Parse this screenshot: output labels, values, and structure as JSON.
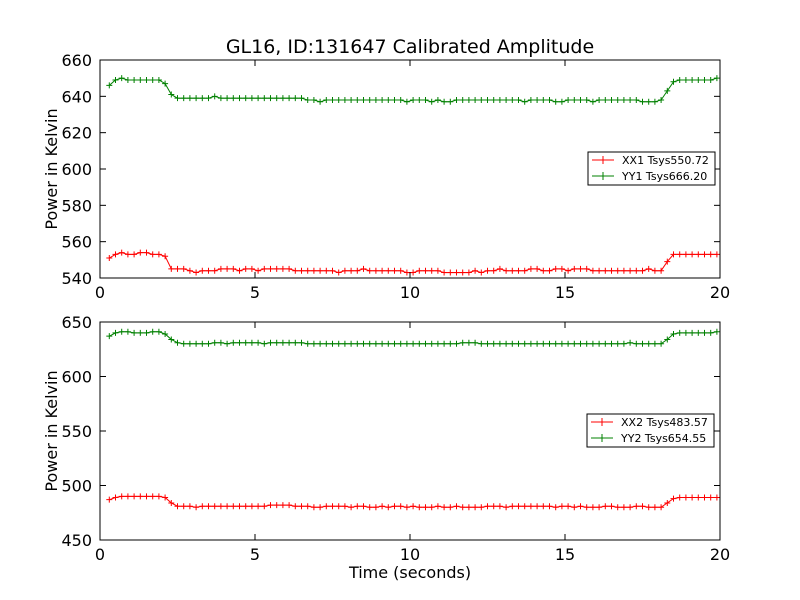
{
  "chart_data": [
    {
      "type": "line",
      "title": "GL16, ID:131647 Calibrated Amplitude",
      "xlabel": "",
      "ylabel": "Power in Kelvin",
      "xlim": [
        0,
        20
      ],
      "ylim": [
        540,
        660
      ],
      "xticks": [
        0,
        5,
        10,
        15,
        20
      ],
      "yticks": [
        540,
        560,
        580,
        600,
        620,
        640,
        660
      ],
      "grid": false,
      "legend_position": "center-right",
      "series": [
        {
          "name": "XX1 Tsys550.72",
          "color": "#ff0000",
          "x": [
            0.3,
            0.5,
            0.7,
            0.9,
            1.1,
            1.3,
            1.5,
            1.7,
            1.9,
            2.1,
            2.3,
            2.5,
            2.7,
            2.9,
            3.1,
            3.3,
            3.5,
            3.7,
            3.9,
            4.1,
            4.3,
            4.5,
            4.7,
            4.9,
            5.1,
            5.3,
            5.5,
            5.7,
            5.9,
            6.1,
            6.3,
            6.5,
            6.7,
            6.9,
            7.1,
            7.3,
            7.5,
            7.7,
            7.9,
            8.1,
            8.3,
            8.5,
            8.7,
            8.9,
            9.1,
            9.3,
            9.5,
            9.7,
            9.9,
            10.1,
            10.3,
            10.5,
            10.7,
            10.9,
            11.1,
            11.3,
            11.5,
            11.7,
            11.9,
            12.1,
            12.3,
            12.5,
            12.7,
            12.9,
            13.1,
            13.3,
            13.5,
            13.7,
            13.9,
            14.1,
            14.3,
            14.5,
            14.7,
            14.9,
            15.1,
            15.3,
            15.5,
            15.7,
            15.9,
            16.1,
            16.3,
            16.5,
            16.7,
            16.9,
            17.1,
            17.3,
            17.5,
            17.7,
            17.9,
            18.1,
            18.3,
            18.5,
            18.7,
            18.9,
            19.1,
            19.3,
            19.5,
            19.7,
            19.9
          ],
          "values": [
            551,
            553,
            554,
            553,
            553,
            554,
            554,
            553,
            553,
            552,
            545,
            545,
            545,
            544,
            543,
            544,
            544,
            544,
            545,
            545,
            545,
            544,
            545,
            545,
            544,
            545,
            545,
            545,
            545,
            545,
            544,
            544,
            544,
            544,
            544,
            544,
            544,
            543,
            544,
            544,
            544,
            545,
            544,
            544,
            544,
            544,
            544,
            544,
            543,
            543,
            544,
            544,
            544,
            544,
            543,
            543,
            543,
            543,
            543,
            544,
            543,
            544,
            544,
            545,
            544,
            544,
            544,
            544,
            545,
            545,
            544,
            544,
            545,
            545,
            544,
            545,
            545,
            545,
            544,
            544,
            544,
            544,
            544,
            544,
            544,
            544,
            544,
            545,
            544,
            544,
            549,
            553,
            553,
            553,
            553,
            553,
            553,
            553,
            553
          ],
          "approximate": true
        },
        {
          "name": "YY1 Tsys666.20",
          "color": "#008000",
          "x": [
            0.3,
            0.5,
            0.7,
            0.9,
            1.1,
            1.3,
            1.5,
            1.7,
            1.9,
            2.1,
            2.3,
            2.5,
            2.7,
            2.9,
            3.1,
            3.3,
            3.5,
            3.7,
            3.9,
            4.1,
            4.3,
            4.5,
            4.7,
            4.9,
            5.1,
            5.3,
            5.5,
            5.7,
            5.9,
            6.1,
            6.3,
            6.5,
            6.7,
            6.9,
            7.1,
            7.3,
            7.5,
            7.7,
            7.9,
            8.1,
            8.3,
            8.5,
            8.7,
            8.9,
            9.1,
            9.3,
            9.5,
            9.7,
            9.9,
            10.1,
            10.3,
            10.5,
            10.7,
            10.9,
            11.1,
            11.3,
            11.5,
            11.7,
            11.9,
            12.1,
            12.3,
            12.5,
            12.7,
            12.9,
            13.1,
            13.3,
            13.5,
            13.7,
            13.9,
            14.1,
            14.3,
            14.5,
            14.7,
            14.9,
            15.1,
            15.3,
            15.5,
            15.7,
            15.9,
            16.1,
            16.3,
            16.5,
            16.7,
            16.9,
            17.1,
            17.3,
            17.5,
            17.7,
            17.9,
            18.1,
            18.3,
            18.5,
            18.7,
            18.9,
            19.1,
            19.3,
            19.5,
            19.7,
            19.9
          ],
          "values": [
            646,
            649,
            650,
            649,
            649,
            649,
            649,
            649,
            649,
            647,
            641,
            639,
            639,
            639,
            639,
            639,
            639,
            640,
            639,
            639,
            639,
            639,
            639,
            639,
            639,
            639,
            639,
            639,
            639,
            639,
            639,
            639,
            638,
            638,
            637,
            638,
            638,
            638,
            638,
            638,
            638,
            638,
            638,
            638,
            638,
            638,
            638,
            638,
            637,
            638,
            638,
            638,
            637,
            638,
            637,
            637,
            638,
            638,
            638,
            638,
            638,
            638,
            638,
            638,
            638,
            638,
            638,
            637,
            638,
            638,
            638,
            638,
            637,
            637,
            638,
            638,
            638,
            638,
            637,
            638,
            638,
            638,
            638,
            638,
            638,
            638,
            637,
            637,
            637,
            638,
            643,
            648,
            649,
            649,
            649,
            649,
            649,
            649,
            650
          ],
          "approximate": true
        }
      ]
    },
    {
      "type": "line",
      "title": "",
      "xlabel": "Time (seconds)",
      "ylabel": "Power in Kelvin",
      "xlim": [
        0,
        20
      ],
      "ylim": [
        450,
        650
      ],
      "xticks": [
        0,
        5,
        10,
        15,
        20
      ],
      "yticks": [
        450,
        500,
        550,
        600,
        650
      ],
      "grid": false,
      "legend_position": "center-right",
      "series": [
        {
          "name": "XX2 Tsys483.57",
          "color": "#ff0000",
          "x": [
            0.3,
            0.5,
            0.7,
            0.9,
            1.1,
            1.3,
            1.5,
            1.7,
            1.9,
            2.1,
            2.3,
            2.5,
            2.7,
            2.9,
            3.1,
            3.3,
            3.5,
            3.7,
            3.9,
            4.1,
            4.3,
            4.5,
            4.7,
            4.9,
            5.1,
            5.3,
            5.5,
            5.7,
            5.9,
            6.1,
            6.3,
            6.5,
            6.7,
            6.9,
            7.1,
            7.3,
            7.5,
            7.7,
            7.9,
            8.1,
            8.3,
            8.5,
            8.7,
            8.9,
            9.1,
            9.3,
            9.5,
            9.7,
            9.9,
            10.1,
            10.3,
            10.5,
            10.7,
            10.9,
            11.1,
            11.3,
            11.5,
            11.7,
            11.9,
            12.1,
            12.3,
            12.5,
            12.7,
            12.9,
            13.1,
            13.3,
            13.5,
            13.7,
            13.9,
            14.1,
            14.3,
            14.5,
            14.7,
            14.9,
            15.1,
            15.3,
            15.5,
            15.7,
            15.9,
            16.1,
            16.3,
            16.5,
            16.7,
            16.9,
            17.1,
            17.3,
            17.5,
            17.7,
            17.9,
            18.1,
            18.3,
            18.5,
            18.7,
            18.9,
            19.1,
            19.3,
            19.5,
            19.7,
            19.9
          ],
          "values": [
            487,
            489,
            490,
            490,
            490,
            490,
            490,
            490,
            490,
            489,
            484,
            481,
            481,
            481,
            480,
            481,
            481,
            481,
            481,
            481,
            481,
            481,
            481,
            481,
            481,
            481,
            482,
            482,
            482,
            482,
            481,
            481,
            481,
            480,
            480,
            481,
            481,
            481,
            481,
            480,
            481,
            481,
            480,
            480,
            481,
            480,
            481,
            481,
            480,
            481,
            480,
            480,
            480,
            481,
            480,
            480,
            481,
            480,
            480,
            480,
            480,
            481,
            481,
            481,
            480,
            481,
            481,
            481,
            481,
            481,
            481,
            481,
            480,
            481,
            481,
            480,
            481,
            480,
            480,
            480,
            481,
            481,
            480,
            480,
            480,
            481,
            481,
            480,
            480,
            480,
            484,
            488,
            489,
            489,
            489,
            489,
            489,
            489,
            489
          ],
          "approximate": true
        },
        {
          "name": "YY2 Tsys654.55",
          "color": "#008000",
          "x": [
            0.3,
            0.5,
            0.7,
            0.9,
            1.1,
            1.3,
            1.5,
            1.7,
            1.9,
            2.1,
            2.3,
            2.5,
            2.7,
            2.9,
            3.1,
            3.3,
            3.5,
            3.7,
            3.9,
            4.1,
            4.3,
            4.5,
            4.7,
            4.9,
            5.1,
            5.3,
            5.5,
            5.7,
            5.9,
            6.1,
            6.3,
            6.5,
            6.7,
            6.9,
            7.1,
            7.3,
            7.5,
            7.7,
            7.9,
            8.1,
            8.3,
            8.5,
            8.7,
            8.9,
            9.1,
            9.3,
            9.5,
            9.7,
            9.9,
            10.1,
            10.3,
            10.5,
            10.7,
            10.9,
            11.1,
            11.3,
            11.5,
            11.7,
            11.9,
            12.1,
            12.3,
            12.5,
            12.7,
            12.9,
            13.1,
            13.3,
            13.5,
            13.7,
            13.9,
            14.1,
            14.3,
            14.5,
            14.7,
            14.9,
            15.1,
            15.3,
            15.5,
            15.7,
            15.9,
            16.1,
            16.3,
            16.5,
            16.7,
            16.9,
            17.1,
            17.3,
            17.5,
            17.7,
            17.9,
            18.1,
            18.3,
            18.5,
            18.7,
            18.9,
            19.1,
            19.3,
            19.5,
            19.7,
            19.9
          ],
          "values": [
            637,
            640,
            641,
            641,
            640,
            640,
            640,
            641,
            641,
            639,
            634,
            631,
            630,
            630,
            630,
            630,
            630,
            631,
            631,
            630,
            631,
            631,
            631,
            631,
            631,
            630,
            631,
            631,
            631,
            631,
            631,
            631,
            630,
            630,
            630,
            630,
            630,
            630,
            630,
            630,
            630,
            630,
            630,
            630,
            630,
            630,
            630,
            630,
            630,
            630,
            630,
            630,
            630,
            630,
            630,
            630,
            630,
            631,
            631,
            631,
            630,
            630,
            630,
            630,
            630,
            630,
            630,
            630,
            630,
            630,
            630,
            630,
            630,
            630,
            630,
            630,
            630,
            630,
            630,
            630,
            630,
            630,
            630,
            630,
            631,
            630,
            630,
            630,
            630,
            630,
            634,
            639,
            640,
            640,
            640,
            640,
            640,
            640,
            641
          ],
          "approximate": true
        }
      ]
    }
  ]
}
